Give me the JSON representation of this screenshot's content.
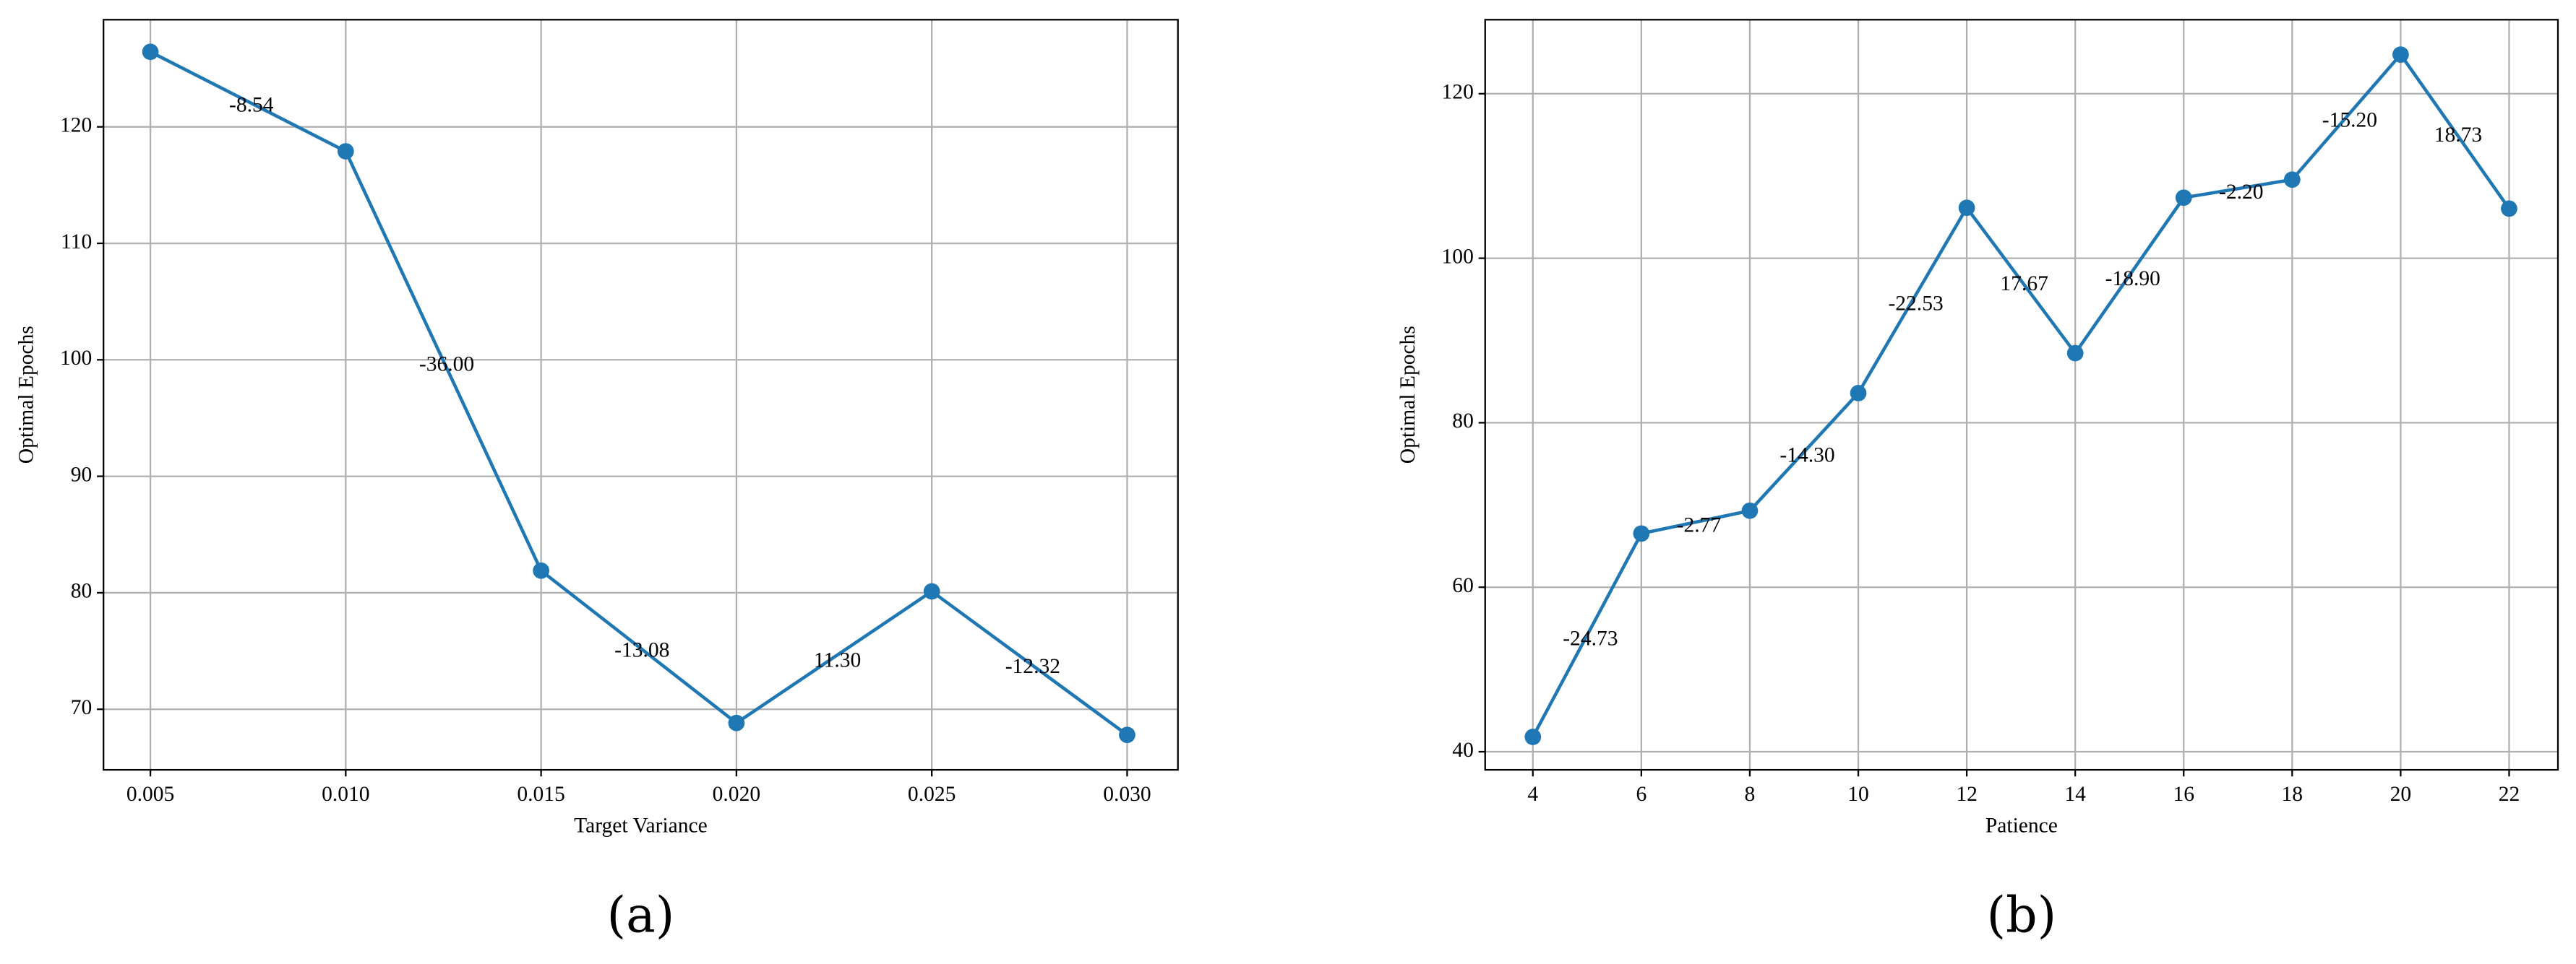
{
  "chart_data": [
    {
      "type": "line",
      "caption": "(a)",
      "x_label": "Target Variance",
      "y_label": "Optimal Epochs",
      "x": [
        0.005,
        0.01,
        0.015,
        0.02,
        0.025,
        0.03
      ],
      "series": [
        {
          "color": "#1f77b4",
          "values": [
            126.44,
            117.9,
            81.9,
            68.82,
            80.12,
            67.8
          ]
        }
      ],
      "annotations": [
        "-8.54",
        "-36.00",
        "-13.08",
        "11.30",
        "-12.32"
      ],
      "xlim": [
        0.0038,
        0.0313
      ],
      "ylim": [
        64.8,
        129.2
      ],
      "xticks": [
        {
          "value": 0.005,
          "label": "0.005"
        },
        {
          "value": 0.01,
          "label": "0.010"
        },
        {
          "value": 0.015,
          "label": "0.015"
        },
        {
          "value": 0.02,
          "label": "0.020"
        },
        {
          "value": 0.025,
          "label": "0.025"
        },
        {
          "value": 0.03,
          "label": "0.030"
        }
      ],
      "yticks": [
        70,
        80,
        90,
        100,
        110,
        120
      ],
      "grid": true
    },
    {
      "type": "line",
      "caption": "(b)",
      "x_label": "Patience",
      "y_label": "Optimal Epochs",
      "x": [
        4,
        6,
        8,
        10,
        12,
        14,
        16,
        18,
        20,
        22
      ],
      "series": [
        {
          "color": "#1f77b4",
          "values": [
            41.8,
            66.53,
            69.3,
            83.6,
            106.13,
            88.46,
            107.36,
            109.56,
            124.76,
            106.03
          ]
        }
      ],
      "annotations": [
        "-24.73",
        "-2.77",
        "-14.30",
        "-22.53",
        "17.67",
        "-18.90",
        "-2.20",
        "-15.20",
        "18.73"
      ],
      "xlim": [
        3.12,
        22.9
      ],
      "ylim": [
        37.8,
        129
      ],
      "xticks": [
        4,
        6,
        8,
        10,
        12,
        14,
        16,
        18,
        20,
        22
      ],
      "yticks": [
        40,
        60,
        80,
        100,
        120
      ],
      "grid": true
    }
  ]
}
